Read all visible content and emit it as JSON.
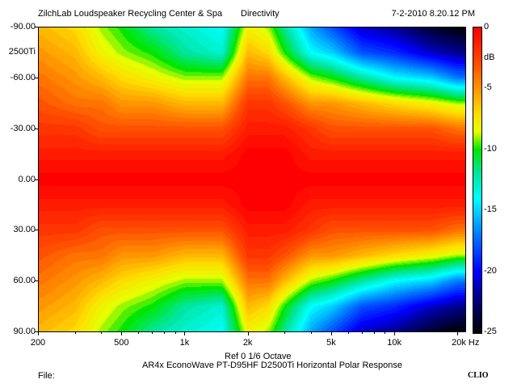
{
  "header": {
    "left": "ZilchLab Loudspeaker Recycling Center & Spa",
    "center": "Directivity",
    "right": "7-2-2010 8.20.12 PM"
  },
  "footer": {
    "ref_line": "Ref 0   1/6 Octave",
    "title": "AR4x EconoWave PT-D95HF D2500Ti Horizontal Polar Response",
    "file_label": "File:",
    "brand": "CLIO"
  },
  "colors": {
    "scale_top": "#ff0000",
    "scale_mid_orange": "#ff8800",
    "scale_mid_yellow": "#ffff00",
    "scale_mid_green": "#00e600",
    "scale_mid_cyan": "#00ffff",
    "scale_mid_blue": "#0000ff",
    "scale_bottom": "#000000"
  },
  "chart_data": {
    "type": "heatmap",
    "title": "Directivity",
    "subtitle": "AR4x EconoWave PT-D95HF D2500Ti Horizontal Polar Response",
    "x_scale": "log",
    "x_unit": "Hz",
    "xlim": [
      200,
      22000
    ],
    "x_ticks": [
      {
        "value": 200,
        "label": "200"
      },
      {
        "value": 500,
        "label": "500"
      },
      {
        "value": 1000,
        "label": "1k"
      },
      {
        "value": 2000,
        "label": "2k"
      },
      {
        "value": 5000,
        "label": "5k"
      },
      {
        "value": 10000,
        "label": "10k"
      },
      {
        "value": 20000,
        "label": "20k Hz"
      }
    ],
    "ylim": [
      -90,
      90
    ],
    "y_ticks": [
      {
        "value": -90,
        "label": "-90.00"
      },
      {
        "value": -60,
        "label": "-60.00"
      },
      {
        "value": -30,
        "label": "-30.00"
      },
      {
        "value": 0,
        "label": "0.00"
      },
      {
        "value": 30,
        "label": "30.00"
      },
      {
        "value": 60,
        "label": "60.00"
      },
      {
        "value": 90,
        "label": "90.00"
      }
    ],
    "y_annotation": {
      "value": -75,
      "label": "2500Ti"
    },
    "colorbar": {
      "unit": "dB",
      "range": [
        -25,
        0
      ],
      "ticks": [
        {
          "value": 0,
          "label": "0"
        },
        {
          "value": -5,
          "label": "-5"
        },
        {
          "value": -10,
          "label": "-10"
        },
        {
          "value": -15,
          "label": "-15"
        },
        {
          "value": -20,
          "label": "-20"
        },
        {
          "value": -25,
          "label": "-25"
        }
      ]
    },
    "grid": false,
    "frequencies_hz": [
      200,
      300,
      400,
      500,
      700,
      1000,
      1500,
      2000,
      2500,
      3000,
      4000,
      5000,
      7000,
      10000,
      15000,
      20000
    ],
    "angles_deg": [
      0,
      15,
      30,
      45,
      60,
      75,
      90
    ],
    "level_db_rows_by_angle": [
      [
        0,
        0,
        0,
        0,
        0,
        0,
        0,
        0,
        0,
        0,
        0,
        0,
        0,
        0,
        0,
        0
      ],
      [
        -1,
        -1,
        -1,
        -1,
        -1,
        -1,
        -1,
        0,
        0,
        0,
        -1,
        -1,
        -1,
        -1,
        -1,
        -1
      ],
      [
        -2,
        -2,
        -3,
        -3,
        -3,
        -3,
        -3,
        -1,
        -1,
        -1,
        -2,
        -3,
        -3,
        -3,
        -3,
        -4
      ],
      [
        -3,
        -4,
        -4,
        -5,
        -5,
        -6,
        -6,
        -2,
        -2,
        -3,
        -5,
        -5,
        -6,
        -7,
        -8,
        -9
      ],
      [
        -4,
        -5,
        -6,
        -7,
        -8,
        -9,
        -9,
        -4,
        -4,
        -6,
        -9,
        -10,
        -12,
        -14,
        -15,
        -17
      ],
      [
        -5,
        -6,
        -8,
        -9,
        -10,
        -12,
        -13,
        -6,
        -7,
        -10,
        -14,
        -15,
        -18,
        -19,
        -21,
        -22
      ],
      [
        -6,
        -7,
        -9,
        -10,
        -12,
        -13,
        -14,
        -8,
        -9,
        -12,
        -16,
        -18,
        -21,
        -22,
        -24,
        -25
      ]
    ]
  }
}
